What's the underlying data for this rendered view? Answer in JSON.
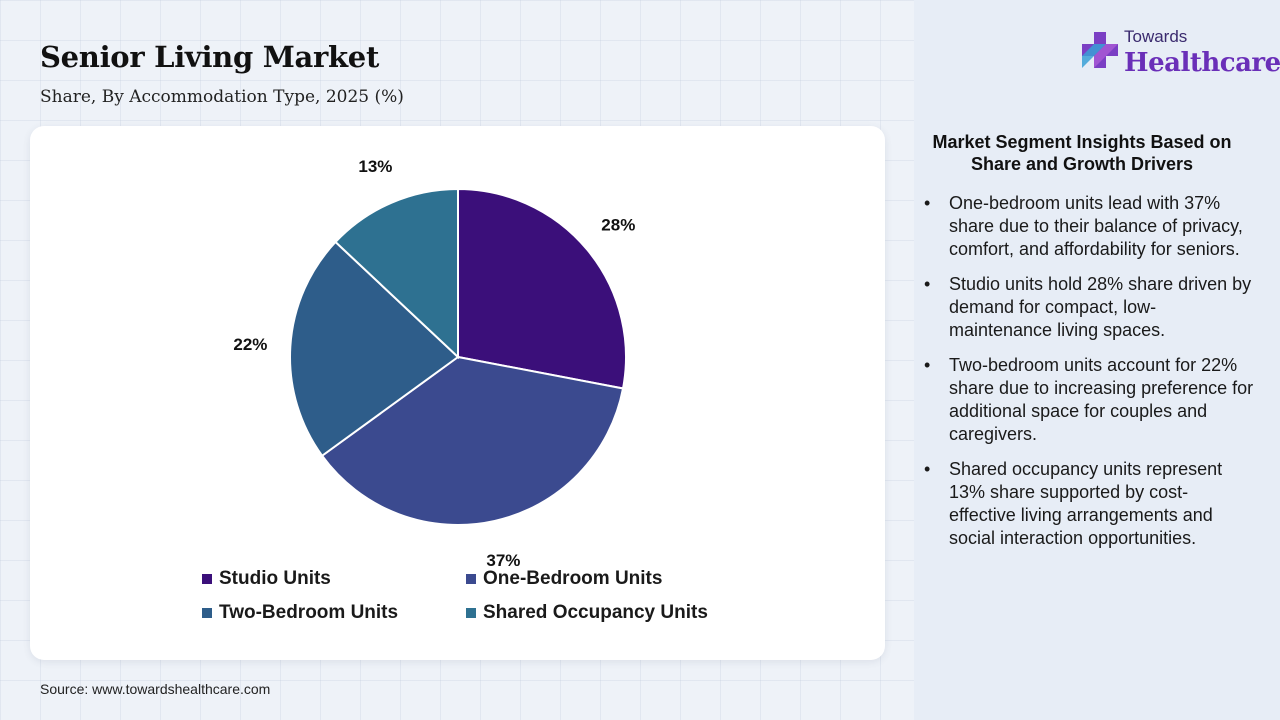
{
  "header": {
    "title": "Senior Living Market",
    "subtitle": "Share, By Accommodation Type, 2025 (%)"
  },
  "brand": {
    "line1": "Towards",
    "line2": "Healthcare"
  },
  "source": "Source: www.towardshealthcare.com",
  "chart_data": {
    "type": "pie",
    "title": "Senior Living Market",
    "subtitle": "Share, By Accommodation Type, 2025 (%)",
    "unit": "%",
    "categories": [
      "Studio Units",
      "One-Bedroom Units",
      "Two-Bedroom Units",
      "Shared Occupancy Units"
    ],
    "values": [
      28,
      37,
      22,
      13
    ],
    "value_labels": [
      "28%",
      "37%",
      "22%",
      "13%"
    ],
    "colors": [
      "#3b0f7a",
      "#3b4a8f",
      "#2e5d8a",
      "#2e7191"
    ],
    "legend_position": "bottom"
  },
  "insights": {
    "title": "Market Segment Insights Based on Share and Growth Drivers",
    "bullet": "•",
    "items": [
      "One-bedroom units lead with 37% share due to their balance of privacy, comfort, and affordability for seniors.",
      "Studio units hold 28% share driven by demand for compact, low-maintenance living spaces.",
      "Two-bedroom units account for 22% share due to increasing preference for additional space for couples and caregivers.",
      "Shared occupancy units represent 13% share supported by cost-effective living arrangements and social interaction opportunities."
    ]
  }
}
